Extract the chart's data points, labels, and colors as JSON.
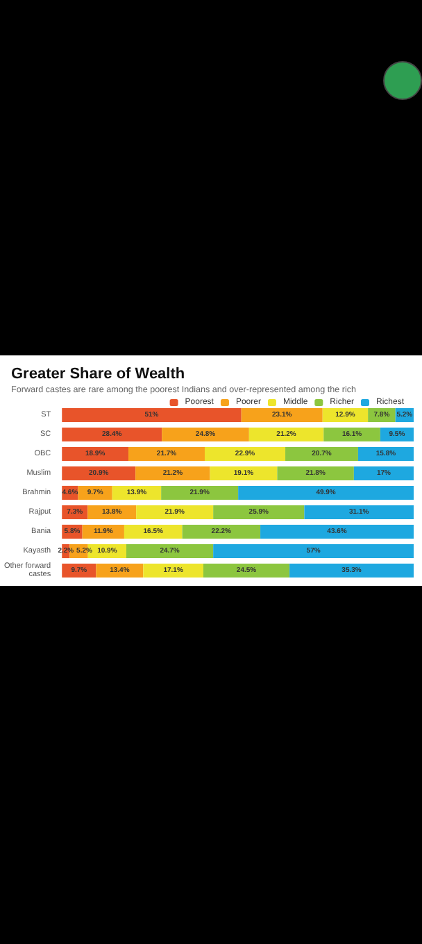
{
  "chart_data": {
    "type": "bar",
    "orientation": "horizontal",
    "stacked": true,
    "title": "Greater Share of Wealth",
    "subtitle": "Forward castes are rare among the poorest Indians and over-represented among the rich",
    "categories": [
      "ST",
      "SC",
      "OBC",
      "Muslim",
      "Brahmin",
      "Rajput",
      "Bania",
      "Kayasth",
      "Other forward castes"
    ],
    "xlim": [
      0,
      100
    ],
    "tick_labels": "y",
    "legend": "top",
    "series": [
      {
        "name": "Poorest",
        "color": "#e8542a",
        "values": [
          51,
          28.4,
          18.9,
          20.9,
          4.6,
          7.3,
          5.8,
          2.2,
          9.7
        ],
        "value_labels": [
          "51%",
          "28.4%",
          "18.9%",
          "20.9%",
          "4.6%",
          "7.3%",
          "5.8%",
          "2.2%",
          "9.7%"
        ]
      },
      {
        "name": "Poorer",
        "color": "#f7a21b",
        "values": [
          23.1,
          24.8,
          21.7,
          21.2,
          9.7,
          13.8,
          11.9,
          5.2,
          13.4
        ],
        "value_labels": [
          "23.1%",
          "24.8%",
          "21.7%",
          "21.2%",
          "9.7%",
          "13.8%",
          "11.9%",
          "5.2%",
          "13.4%"
        ]
      },
      {
        "name": "Middle",
        "color": "#ede52c",
        "values": [
          12.9,
          21.2,
          22.9,
          19.1,
          13.9,
          21.9,
          16.5,
          10.9,
          17.1
        ],
        "value_labels": [
          "12.9%",
          "21.2%",
          "22.9%",
          "19.1%",
          "13.9%",
          "21.9%",
          "16.5%",
          "10.9%",
          "17.1%"
        ]
      },
      {
        "name": "Richer",
        "color": "#8cc63f",
        "values": [
          7.8,
          16.1,
          20.7,
          21.8,
          21.9,
          25.9,
          22.2,
          24.7,
          24.5
        ],
        "value_labels": [
          "7.8%",
          "16.1%",
          "20.7%",
          "21.8%",
          "21.9%",
          "25.9%",
          "22.2%",
          "24.7%",
          "24.5%"
        ]
      },
      {
        "name": "Richest",
        "color": "#1ea8e0",
        "values": [
          5.2,
          9.5,
          15.8,
          17,
          49.9,
          31.1,
          43.6,
          57,
          35.3
        ],
        "value_labels": [
          "5.2%",
          "9.5%",
          "15.8%",
          "17%",
          "49.9%",
          "31.1%",
          "43.6%",
          "57%",
          "35.3%"
        ]
      }
    ]
  }
}
